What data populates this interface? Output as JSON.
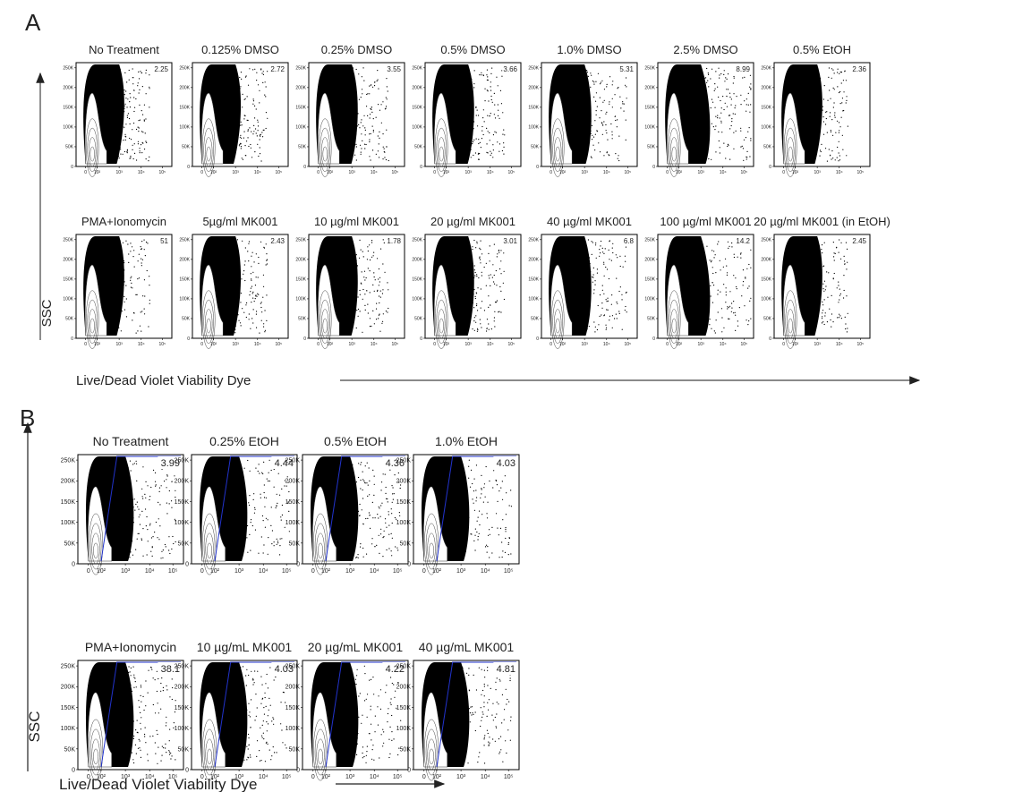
{
  "panels": [
    {
      "label": "A",
      "y_axis_label": "SSC",
      "x_axis_label": "Live/Dead Violet Viability Dye",
      "yticks": [
        "250K",
        "200K",
        "150K",
        "100K",
        "50K",
        "0"
      ],
      "xticks": [
        "0",
        "10²",
        "10³",
        "10⁴",
        "10⁵"
      ],
      "rows": [
        [
          {
            "title": "No Treatment",
            "value": "2.25"
          },
          {
            "title": "0.125% DMSO",
            "value": "2.72"
          },
          {
            "title": "0.25% DMSO",
            "value": "3.55"
          },
          {
            "title": "0.5% DMSO",
            "value": "3.66"
          },
          {
            "title": "1.0% DMSO",
            "value": "5.31"
          },
          {
            "title": "2.5% DMSO",
            "value": "8.99"
          },
          {
            "title": "0.5% EtOH",
            "value": "2.36"
          }
        ],
        [
          {
            "title": "PMA+Ionomycin",
            "value": "51"
          },
          {
            "title": "5µg/ml MK001",
            "value": "2.43"
          },
          {
            "title": "10 µg/ml MK001",
            "value": "1.78"
          },
          {
            "title": "20 µg/ml MK001",
            "value": "3.01"
          },
          {
            "title": "40 µg/ml MK001",
            "value": "6.8"
          },
          {
            "title": "100 µg/ml MK001",
            "value": "14.2"
          },
          {
            "title": "20 µg/ml MK001 (in EtOH)",
            "value": "2.45"
          }
        ]
      ]
    },
    {
      "label": "B",
      "y_axis_label": "SSC",
      "x_axis_label": "Live/Dead Violet Viability Dye",
      "yticks": [
        "250K",
        "200K",
        "150K",
        "100K",
        "50K",
        "0"
      ],
      "xticks": [
        "0",
        "10²",
        "10³",
        "10⁴",
        "10⁵"
      ],
      "rows": [
        [
          {
            "title": "No Treatment",
            "value": "3.99"
          },
          {
            "title": "0.25% EtOH",
            "value": "4.44"
          },
          {
            "title": "0.5% EtOH",
            "value": "4.36"
          },
          {
            "title": "1.0% EtOH",
            "value": "4.03"
          }
        ],
        [
          {
            "title": "PMA+Ionomycin",
            "value": "38.1"
          },
          {
            "title": "10 µg/mL MK001",
            "value": "4.03"
          },
          {
            "title": "20 µg/mL MK001",
            "value": "4.22"
          },
          {
            "title": "40 µg/mL MK001",
            "value": "4.81"
          }
        ]
      ]
    }
  ]
}
